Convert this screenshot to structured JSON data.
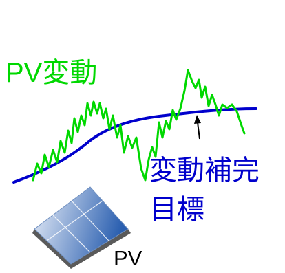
{
  "labels": {
    "pv_fluctuation": "PV変動",
    "target_line1": "変動補完",
    "target_line2": "目標",
    "pv_panel": "PV"
  },
  "colors": {
    "pv_fluctuation": "#00d800",
    "target": "#0000cc",
    "pv_panel_text": "#000000",
    "panel_light": "#e8eef8",
    "panel_dark": "#2a5fb0",
    "panel_edge": "#5a5a5a"
  },
  "icons": {
    "solar_panel": "solar-panel-icon",
    "arrow": "arrow-up-icon"
  }
}
